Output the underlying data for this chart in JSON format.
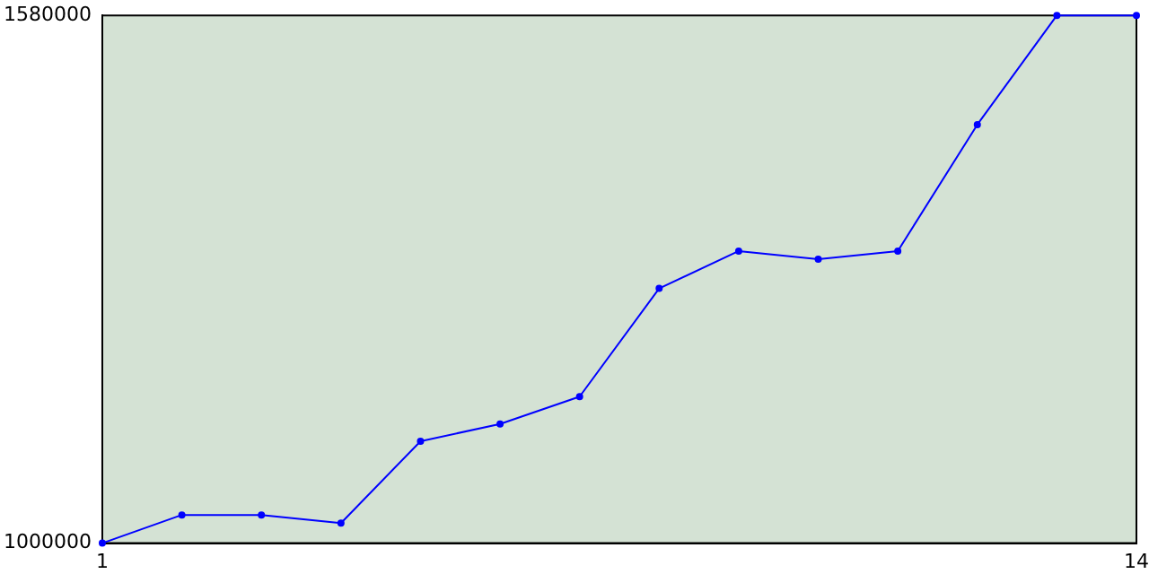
{
  "chart_data": {
    "type": "line",
    "x": [
      1,
      2,
      3,
      4,
      5,
      6,
      7,
      8,
      9,
      10,
      11,
      12,
      13,
      14
    ],
    "series": [
      {
        "color": "#0000ff",
        "values": [
          1000000,
          1031000,
          1031000,
          1022000,
          1112000,
          1131000,
          1161000,
          1280000,
          1321000,
          1312000,
          1321000,
          1460000,
          1580000,
          1580000
        ]
      }
    ],
    "xlim": [
      1,
      14
    ],
    "xticks": [
      1,
      14
    ],
    "ylim": [
      1000000,
      1580000
    ],
    "yticks": [
      1000000,
      1580000
    ],
    "grid": false,
    "legend": false,
    "marker": "circle",
    "line_style": "solid"
  }
}
